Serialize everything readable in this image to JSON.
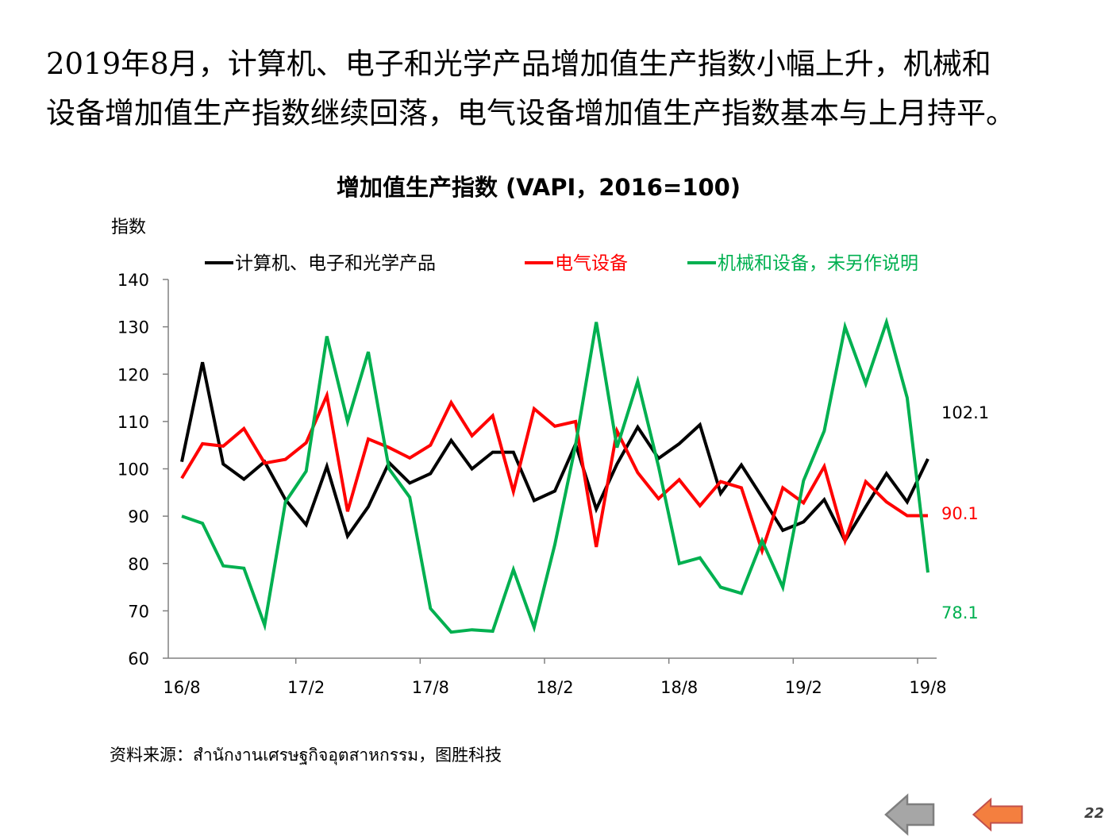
{
  "headline": {
    "line1": "2019年8月，计算机、电子和光学产品增加值生产指数小幅上升，机械和",
    "line2": "设备增加值生产指数继续回落，电气设备增加值生产指数基本与上月持平。"
  },
  "chart_data": {
    "type": "line",
    "title": "增加值生产指数 (VAPI，2016=100)",
    "ylabel": "指数",
    "xlabel": "",
    "ylim": [
      60,
      140
    ],
    "yticks": [
      60,
      70,
      80,
      90,
      100,
      110,
      120,
      130,
      140
    ],
    "xtick_labels": [
      "16/8",
      "17/2",
      "17/8",
      "18/2",
      "18/8",
      "19/2",
      "19/8"
    ],
    "xtick_index": [
      0,
      6,
      12,
      18,
      24,
      30,
      36
    ],
    "categories": [
      "16/8",
      "16/9",
      "16/10",
      "16/11",
      "16/12",
      "17/1",
      "17/2",
      "17/3",
      "17/4",
      "17/5",
      "17/6",
      "17/7",
      "17/8",
      "17/9",
      "17/10",
      "17/11",
      "17/12",
      "18/1",
      "18/2",
      "18/3",
      "18/4",
      "18/5",
      "18/6",
      "18/7",
      "18/8",
      "18/9",
      "18/10",
      "18/11",
      "18/12",
      "19/1",
      "19/2",
      "19/3",
      "19/4",
      "19/5",
      "19/6",
      "19/7",
      "19/8"
    ],
    "series": [
      {
        "name": "计算机、电子和光学产品",
        "color": "#000000",
        "values": [
          101.5,
          122.5,
          101,
          97.8,
          101.5,
          93.5,
          88.2,
          100.5,
          85.8,
          92,
          101.3,
          97,
          99,
          106,
          100,
          103.5,
          103.5,
          93.3,
          95.3,
          105.2,
          91.5,
          101,
          108.8,
          102.2,
          105.3,
          109.3,
          94.8,
          100.8,
          94,
          87,
          88.8,
          93.5,
          84.8,
          92,
          99,
          93,
          102.1
        ],
        "end_label": "102.1"
      },
      {
        "name": "电气设备",
        "color": "#ff0000",
        "values": [
          98,
          105.3,
          104.8,
          108.5,
          101.2,
          102,
          105.5,
          115.5,
          91,
          106.3,
          104.5,
          102.3,
          105,
          114,
          107,
          111.2,
          95.2,
          112.7,
          109,
          110,
          83.5,
          108,
          99.2,
          93.7,
          97.7,
          92.2,
          97.3,
          96,
          82.7,
          96,
          92.8,
          100.5,
          84.8,
          97.3,
          93,
          90.1,
          90.1
        ],
        "end_label": "90.1"
      },
      {
        "name": "机械和设备，未另作说明",
        "color": "#00b050",
        "values": [
          90,
          88.5,
          79.5,
          79,
          67,
          93,
          99.5,
          128,
          110,
          124.7,
          100,
          94,
          70.5,
          65.5,
          66,
          65.7,
          78.7,
          66.5,
          84,
          105,
          131,
          104.5,
          118.5,
          100.5,
          80,
          81.2,
          75,
          73.7,
          84.8,
          75,
          97.5,
          108,
          130,
          118,
          131,
          115,
          78.1
        ],
        "end_label": "78.1"
      }
    ]
  },
  "source": "资料来源：สำนักงานเศรษฐกิจอุตสาหกรรม，图胜科技",
  "nav": {
    "prev": "previous-page",
    "next": "next-page"
  },
  "page_number": "22",
  "colors": {
    "prev_arrow_fill": "#a6a6a6",
    "prev_arrow_stroke": "#7f7f7f",
    "next_arrow_fill": "#f47f3f",
    "next_arrow_stroke": "#c0504d"
  }
}
